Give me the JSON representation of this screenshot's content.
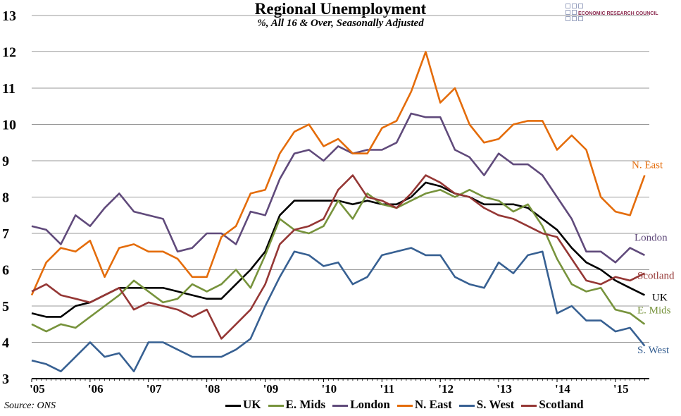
{
  "chart_data": {
    "type": "line",
    "title": "Regional Unemployment",
    "subtitle": "%, All 16 & Over, Seasonally Adjusted",
    "source": "Source: ONS",
    "logo_text": "ECONOMIC RESEARCH COUNCIL",
    "ylim": [
      3,
      13
    ],
    "yticks": [
      "3",
      "4",
      "5",
      "6",
      "7",
      "8",
      "9",
      "10",
      "11",
      "12",
      "13"
    ],
    "xlim": [
      2005,
      2015.58
    ],
    "xticks": [
      "'05",
      "'06",
      "'07",
      "'08",
      "'09",
      "'10",
      "'11",
      "'12",
      "'13",
      "'14",
      "'15"
    ],
    "grid": "horizontal",
    "legend_position": "bottom",
    "x_start": 2005,
    "x_step_years": 0.25,
    "series": [
      {
        "name": "UK",
        "label": "UK",
        "color": "#000000",
        "values": [
          4.8,
          4.7,
          4.7,
          5.0,
          5.1,
          5.3,
          5.5,
          5.5,
          5.5,
          5.5,
          5.4,
          5.3,
          5.2,
          5.2,
          5.6,
          6.0,
          6.5,
          7.5,
          7.9,
          7.9,
          7.9,
          7.9,
          7.8,
          7.9,
          7.8,
          7.8,
          8.0,
          8.4,
          8.3,
          8.1,
          8.0,
          7.8,
          7.8,
          7.8,
          7.7,
          7.4,
          7.1,
          6.6,
          6.2,
          6.0,
          5.7,
          5.5,
          5.3
        ]
      },
      {
        "name": "E. Mids",
        "label": "E. Mids",
        "color": "#77933c",
        "values": [
          4.5,
          4.3,
          4.5,
          4.4,
          4.7,
          5.0,
          5.3,
          5.7,
          5.4,
          5.1,
          5.2,
          5.6,
          5.4,
          5.6,
          6.0,
          5.5,
          6.4,
          7.4,
          7.1,
          7.0,
          7.2,
          7.9,
          7.4,
          8.1,
          7.8,
          7.7,
          7.9,
          8.1,
          8.2,
          8.0,
          8.2,
          8.0,
          7.9,
          7.6,
          7.8,
          7.2,
          6.3,
          5.6,
          5.4,
          5.5,
          4.9,
          4.8,
          4.5
        ]
      },
      {
        "name": "London",
        "label": "London",
        "color": "#604a7b",
        "values": [
          7.2,
          7.1,
          6.7,
          7.5,
          7.2,
          7.7,
          8.1,
          7.6,
          7.5,
          7.4,
          6.5,
          6.6,
          7.0,
          7.0,
          6.7,
          7.6,
          7.5,
          8.5,
          9.2,
          9.3,
          9.0,
          9.4,
          9.2,
          9.3,
          9.3,
          9.5,
          10.3,
          10.2,
          10.2,
          9.3,
          9.1,
          8.6,
          9.2,
          8.9,
          8.9,
          8.6,
          8.0,
          7.4,
          6.5,
          6.5,
          6.2,
          6.6,
          6.4
        ]
      },
      {
        "name": "N. East",
        "label": "N. East",
        "color": "#e46c0a",
        "values": [
          5.3,
          6.2,
          6.6,
          6.5,
          6.8,
          5.8,
          6.6,
          6.7,
          6.5,
          6.5,
          6.3,
          5.8,
          5.8,
          6.9,
          7.2,
          8.1,
          8.2,
          9.2,
          9.8,
          10.0,
          9.4,
          9.6,
          9.2,
          9.2,
          9.9,
          10.1,
          10.9,
          12.0,
          10.6,
          11.0,
          10.0,
          9.5,
          9.6,
          10.0,
          10.1,
          10.1,
          9.3,
          9.7,
          9.3,
          8.0,
          7.6,
          7.5,
          8.6
        ]
      },
      {
        "name": "S. West",
        "label": "S. West",
        "color": "#376092",
        "values": [
          3.5,
          3.4,
          3.2,
          3.6,
          4.0,
          3.6,
          3.7,
          3.2,
          4.0,
          4.0,
          3.8,
          3.6,
          3.6,
          3.6,
          3.8,
          4.1,
          5.0,
          5.8,
          6.5,
          6.4,
          6.1,
          6.2,
          5.6,
          5.8,
          6.4,
          6.5,
          6.6,
          6.4,
          6.4,
          5.8,
          5.6,
          5.5,
          6.2,
          5.9,
          6.4,
          6.5,
          4.8,
          5.0,
          4.6,
          4.6,
          4.3,
          4.4,
          3.9
        ]
      },
      {
        "name": "Scotland",
        "label": "Scotland",
        "color": "#953735",
        "values": [
          5.4,
          5.6,
          5.3,
          5.2,
          5.1,
          5.3,
          5.5,
          4.9,
          5.1,
          5.0,
          4.9,
          4.7,
          4.9,
          4.1,
          4.5,
          4.9,
          5.6,
          6.7,
          7.1,
          7.2,
          7.4,
          8.2,
          8.6,
          8.0,
          7.9,
          7.7,
          8.1,
          8.6,
          8.4,
          8.1,
          8.0,
          7.7,
          7.5,
          7.4,
          7.2,
          7.0,
          6.9,
          6.3,
          5.7,
          5.6,
          5.8,
          5.7,
          5.9
        ]
      }
    ]
  }
}
